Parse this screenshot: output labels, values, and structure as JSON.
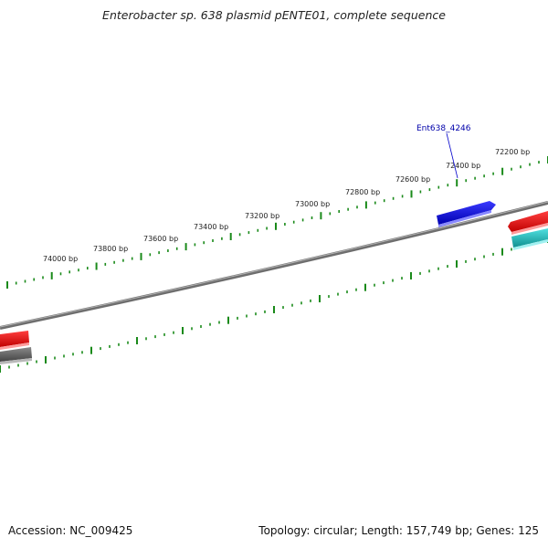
{
  "title": "Enterobacter sp. 638 plasmid pENTE01, complete sequence",
  "footer": {
    "accession": "Accession: NC_009425",
    "summary": "Topology: circular; Length: 157,749 bp; Genes: 125"
  },
  "map": {
    "outer_scale_labels": [
      "74000 bp",
      "73800 bp",
      "73600 bp",
      "73400 bp",
      "73200 bp",
      "73000 bp",
      "72800 bp",
      "72600 bp",
      "72400 bp",
      "72200 bp"
    ],
    "gene_label": "Ent638_4246",
    "colors": {
      "tick": "#1a8a1a",
      "backbone": "#808080",
      "gene_forward_blue": "#0000dd",
      "gene_forward_red": "#e00000",
      "gene_reverse_cyan": "#20c8c8",
      "gene_reverse_gray": "#666666",
      "label_line": "#0000cc"
    }
  }
}
